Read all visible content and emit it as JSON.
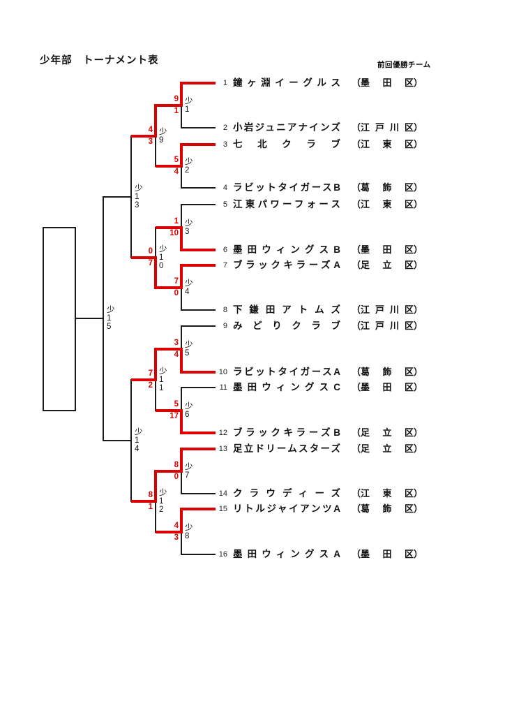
{
  "page": {
    "title": "少年部　トーナメント表",
    "prev_champion_note": "前回優勝チーム"
  },
  "colors": {
    "advance_line": "#dd0000",
    "bracket_line": "#1a1a1a",
    "score_text": "#dd0000"
  },
  "champion_box": {
    "text": ""
  },
  "teams": [
    {
      "num": "1",
      "name": "鐘ヶ淵イーグルス",
      "district": "墨田区",
      "won_first_round": true
    },
    {
      "num": "2",
      "name": "小岩ジュニアナインズ",
      "district": "江戸川区",
      "won_first_round": false
    },
    {
      "num": "3",
      "name": "七北クラブ",
      "district": "江東区",
      "won_first_round": true
    },
    {
      "num": "4",
      "name": "ラビットタイガースB",
      "district": "葛飾区",
      "won_first_round": false
    },
    {
      "num": "5",
      "name": "江東パワーフォース",
      "district": "江東区",
      "won_first_round": false
    },
    {
      "num": "6",
      "name": "墨田ウィングスB",
      "district": "墨田区",
      "won_first_round": true
    },
    {
      "num": "7",
      "name": "ブラックキラーズA",
      "district": "足立区",
      "won_first_round": true
    },
    {
      "num": "8",
      "name": "下鎌田アトムズ",
      "district": "江戸川区",
      "won_first_round": false
    },
    {
      "num": "9",
      "name": "みどりクラブ",
      "district": "江戸川区",
      "won_first_round": false
    },
    {
      "num": "10",
      "name": "ラビットタイガースA",
      "district": "葛飾区",
      "won_first_round": true
    },
    {
      "num": "11",
      "name": "墨田ウィングスC",
      "district": "墨田区",
      "won_first_round": false
    },
    {
      "num": "12",
      "name": "ブラックキラーズB",
      "district": "足立区",
      "won_first_round": true
    },
    {
      "num": "13",
      "name": "足立ドリームスターズ",
      "district": "足立区",
      "won_first_round": true
    },
    {
      "num": "14",
      "name": "クラウディーズ",
      "district": "江東区",
      "won_first_round": false
    },
    {
      "num": "15",
      "name": "リトルジャイアンツA",
      "district": "葛飾区",
      "won_first_round": true
    },
    {
      "num": "16",
      "name": "墨田ウィングスA",
      "district": "墨田区",
      "won_first_round": false
    }
  ],
  "matches": {
    "round1": [
      {
        "label": "少1",
        "top_team": "1",
        "bottom_team": "2",
        "score_top": "9",
        "score_bottom": "1",
        "winner": "top"
      },
      {
        "label": "少2",
        "top_team": "3",
        "bottom_team": "4",
        "score_top": "5",
        "score_bottom": "4",
        "winner": "top"
      },
      {
        "label": "少3",
        "top_team": "5",
        "bottom_team": "6",
        "score_top": "1",
        "score_bottom": "10",
        "winner": "bottom"
      },
      {
        "label": "少4",
        "top_team": "7",
        "bottom_team": "8",
        "score_top": "7",
        "score_bottom": "0",
        "winner": "top"
      },
      {
        "label": "少5",
        "top_team": "9",
        "bottom_team": "10",
        "score_top": "3",
        "score_bottom": "4",
        "winner": "bottom"
      },
      {
        "label": "少6",
        "top_team": "11",
        "bottom_team": "12",
        "score_top": "5",
        "score_bottom": "17",
        "winner": "bottom"
      },
      {
        "label": "少7",
        "top_team": "13",
        "bottom_team": "14",
        "score_top": "8",
        "score_bottom": "0",
        "winner": "top"
      },
      {
        "label": "少8",
        "top_team": "15",
        "bottom_team": "16",
        "score_top": "4",
        "score_bottom": "3",
        "winner": "top"
      }
    ],
    "round2": [
      {
        "label": "少9",
        "top_from": "少1",
        "bottom_from": "少2",
        "score_top": "4",
        "score_bottom": "3",
        "winner": "top"
      },
      {
        "label": "少10",
        "top_from": "少3",
        "bottom_from": "少4",
        "score_top": "0",
        "score_bottom": "7",
        "winner": "bottom"
      },
      {
        "label": "少11",
        "top_from": "少5",
        "bottom_from": "少6",
        "score_top": "7",
        "score_bottom": "2",
        "winner": "top"
      },
      {
        "label": "少12",
        "top_from": "少7",
        "bottom_from": "少8",
        "score_top": "8",
        "score_bottom": "1",
        "winner": "top"
      }
    ],
    "semifinals": [
      {
        "label": "少13",
        "top_from": "少9",
        "bottom_from": "少10",
        "score_top": "",
        "score_bottom": "",
        "winner": ""
      },
      {
        "label": "少14",
        "top_from": "少11",
        "bottom_from": "少12",
        "score_top": "",
        "score_bottom": "",
        "winner": ""
      }
    ],
    "final": {
      "label": "少15",
      "top_from": "少13",
      "bottom_from": "少14",
      "score_top": "",
      "score_bottom": "",
      "winner": ""
    }
  }
}
